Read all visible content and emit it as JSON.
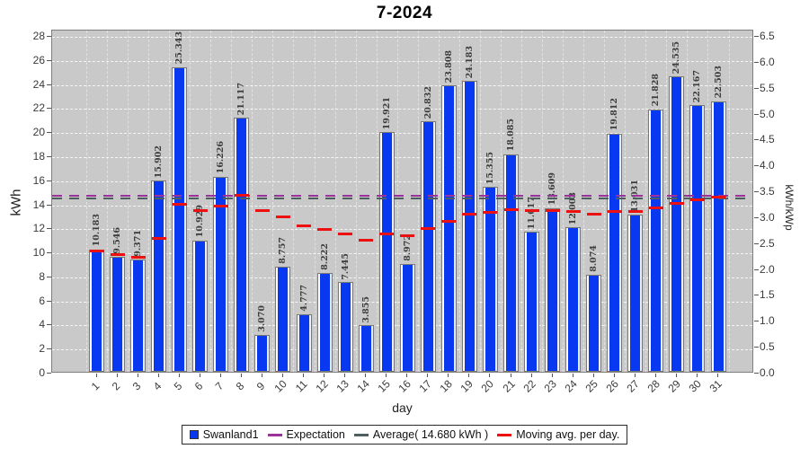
{
  "title": "7-2024",
  "chart_data": {
    "type": "bar",
    "title": "7-2024",
    "xlabel": "day",
    "ylabel": "kWh",
    "ylabel_right": "kWh/kWp",
    "ylim": [
      0,
      28
    ],
    "ylim_right": [
      0,
      6.5
    ],
    "grid": "white dashed, on",
    "legend_position": "bottom",
    "categories": [
      1,
      2,
      3,
      4,
      5,
      6,
      7,
      8,
      9,
      10,
      11,
      12,
      13,
      14,
      15,
      16,
      17,
      18,
      19,
      20,
      21,
      22,
      23,
      24,
      25,
      26,
      27,
      28,
      29,
      30,
      31
    ],
    "series": [
      {
        "name": "Swanland1",
        "values": [
          10.183,
          9.546,
          9.371,
          15.902,
          25.343,
          10.929,
          16.226,
          21.117,
          3.07,
          8.757,
          4.777,
          8.222,
          7.445,
          3.855,
          19.921,
          8.972,
          20.832,
          23.808,
          24.183,
          15.355,
          18.085,
          11.617,
          13.609,
          12.003,
          8.074,
          19.812,
          13.031,
          21.828,
          24.535,
          22.167,
          22.503
        ]
      }
    ],
    "moving_avg_per_day": [
      10.183,
      9.865,
      9.7,
      11.251,
      14.069,
      13.546,
      13.929,
      14.827,
      13.521,
      13.044,
      12.293,
      11.954,
      11.607,
      11.053,
      11.644,
      11.477,
      12.028,
      12.682,
      13.287,
      13.391,
      13.614,
      13.524,
      13.527,
      13.464,
      13.248,
      13.501,
      13.483,
      13.781,
      14.152,
      14.419,
      14.68
    ],
    "average_kwh": 14.68,
    "expectation_kwh": 14.78,
    "left_ticks": [
      0,
      2,
      4,
      6,
      8,
      10,
      12,
      14,
      16,
      18,
      20,
      22,
      24,
      26,
      28
    ],
    "right_ticks": [
      "0.0",
      "0.5",
      "1.0",
      "1.5",
      "2.0",
      "2.5",
      "3.0",
      "3.5",
      "4.0",
      "4.5",
      "5.0",
      "5.5",
      "6.0",
      "6.5"
    ]
  },
  "axes": {
    "left_label": "kWh",
    "right_label": "kWh/kWp",
    "bottom_label": "day"
  },
  "legend": {
    "items": [
      {
        "label": "Swanland1",
        "swatch": "square",
        "color": "#0838f0"
      },
      {
        "label": "Expectation",
        "swatch": "line",
        "color": "#993399"
      },
      {
        "label": "Average( 14.680 kWh )",
        "swatch": "line",
        "color": "#4d5f5f"
      },
      {
        "label": "Moving avg. per day.",
        "swatch": "line",
        "color": "#ec1010"
      }
    ]
  },
  "colors": {
    "plot_background": "#c9c9c9",
    "bar_fill": "#0838f0",
    "bar_outline": "#787878",
    "gridline": "#ffffff",
    "average_line": "#4d5f5f",
    "expectation_line": "#993399",
    "moving_avg_line": "#ec1010",
    "value_label": "#3c3c3c"
  }
}
